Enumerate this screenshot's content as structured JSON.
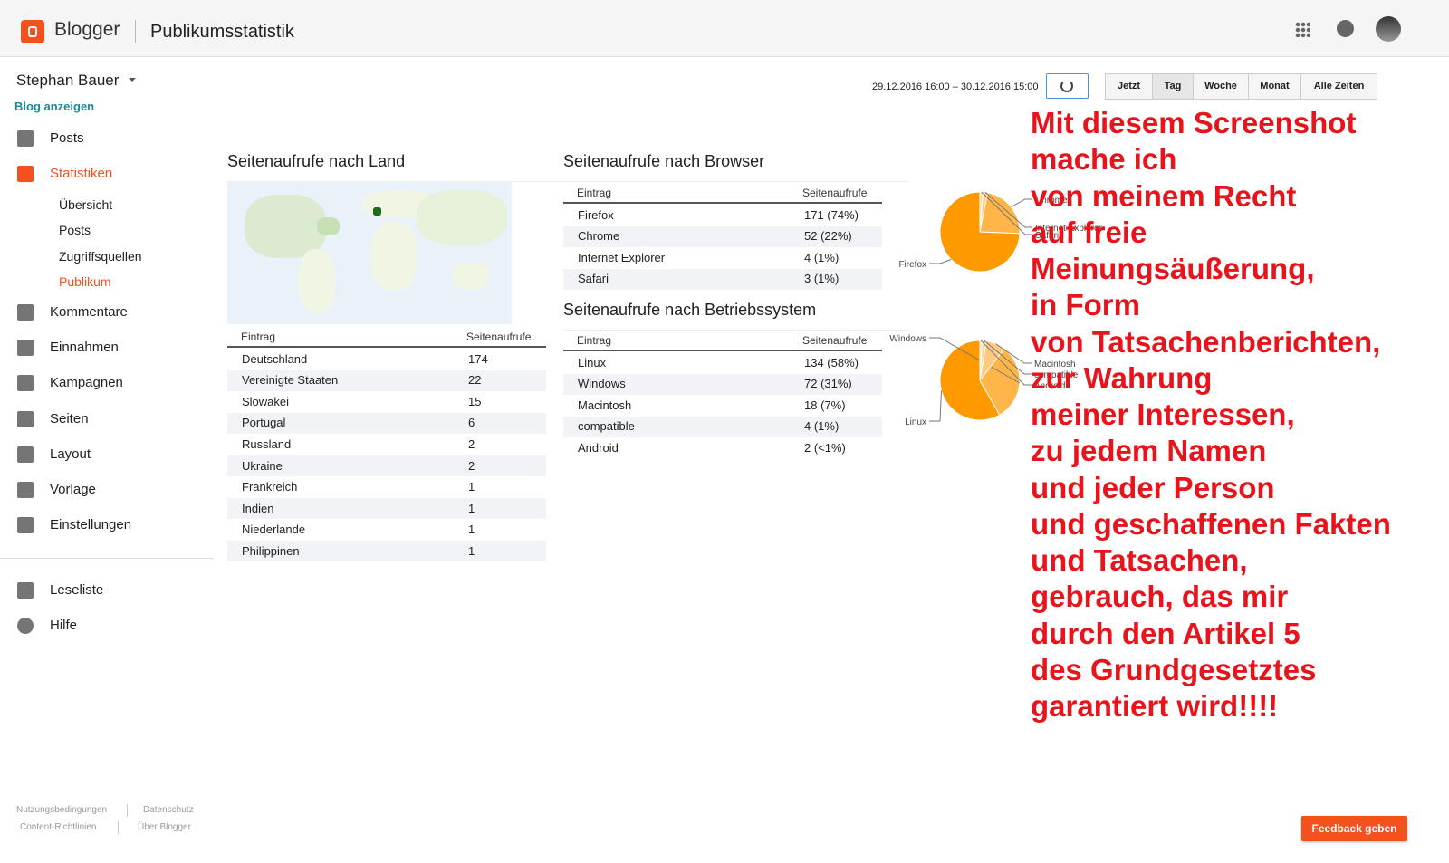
{
  "header": {
    "brand": "Blogger",
    "title": "Publikumsstatistik"
  },
  "sidebar": {
    "user": "Stephan Bauer",
    "view_blog": "Blog anzeigen",
    "nav": [
      "Posts",
      "Statistiken",
      "Kommentare",
      "Einnahmen",
      "Kampagnen",
      "Seiten",
      "Layout",
      "Vorlage",
      "Einstellungen"
    ],
    "active_nav": 1,
    "sub_nav": [
      "Übersicht",
      "Posts",
      "Zugriffsquellen",
      "Publikum"
    ],
    "active_sub": 3,
    "nav2": [
      "Leseliste",
      "Hilfe"
    ]
  },
  "footer": {
    "links": [
      "Nutzungsbedingungen",
      "Datenschutz",
      "Content-Richtlinien",
      "Über Blogger"
    ],
    "feedback": "Feedback geben"
  },
  "toolbar": {
    "range": "29.12.2016 16:00 – 30.12.2016 15:00",
    "buttons": [
      "Jetzt",
      "Tag",
      "Woche",
      "Monat",
      "Alle Zeiten"
    ],
    "active_button": 1
  },
  "country": {
    "title": "Seitenaufrufe nach Land",
    "columns": [
      "Eintrag",
      "Seitenaufrufe"
    ],
    "rows": [
      [
        "Deutschland",
        174
      ],
      [
        "Vereinigte Staaten",
        22
      ],
      [
        "Slowakei",
        15
      ],
      [
        "Portugal",
        6
      ],
      [
        "Russland",
        2
      ],
      [
        "Ukraine",
        2
      ],
      [
        "Frankreich",
        1
      ],
      [
        "Indien",
        1
      ],
      [
        "Niederlande",
        1
      ],
      [
        "Philippinen",
        1
      ]
    ]
  },
  "browser": {
    "title": "Seitenaufrufe nach Browser",
    "columns": [
      "Eintrag",
      "Seitenaufrufe"
    ],
    "rows": [
      [
        "Firefox",
        "171 (74%)"
      ],
      [
        "Chrome",
        "52 (22%)"
      ],
      [
        "Internet Explorer",
        "4 (1%)"
      ],
      [
        "Safari",
        "3 (1%)"
      ]
    ],
    "pie": {
      "values": [
        171,
        52,
        4,
        3
      ],
      "colors": [
        "#ff9900",
        "#ffb547",
        "#ffc980",
        "#ffdcaa"
      ]
    }
  },
  "os": {
    "title": "Seitenaufrufe nach Betriebssystem",
    "columns": [
      "Eintrag",
      "Seitenaufrufe"
    ],
    "rows": [
      [
        "Linux",
        "134 (58%)"
      ],
      [
        "Windows",
        "72 (31%)"
      ],
      [
        "Macintosh",
        "18 (7%)"
      ],
      [
        "compatible",
        "4 (1%)"
      ],
      [
        "Android",
        "2 (<1%)"
      ]
    ],
    "pie": {
      "values": [
        134,
        72,
        18,
        4,
        2
      ],
      "colors": [
        "#ff9900",
        "#ffb547",
        "#ffc980",
        "#ffd59b",
        "#ffe3bd"
      ]
    }
  },
  "annotation": [
    "Mit diesem Screenshot",
    "mache ich",
    "von meinem Recht",
    "auf freie",
    "Meinungsäußerung,",
    "in Form",
    "von Tatsachenberichten,",
    "zur Wahrung",
    "meiner Interessen,",
    "zu jedem Namen",
    "und jeder Person",
    "und geschaffenen Fakten",
    "und Tatsachen,",
    "gebrauch, das mir",
    "durch den Artikel 5",
    "des Grundgesetztes",
    "garantiert wird!!!!"
  ]
}
